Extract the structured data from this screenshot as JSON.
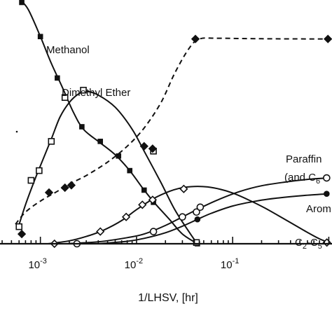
{
  "chart_data": {
    "type": "scatter",
    "xlabel": "1/LHSV, [hr]",
    "x_scale": "log",
    "xlim": [
      0.00038,
      1.08
    ],
    "ylim": [
      0,
      100
    ],
    "grid": false,
    "legend": "none",
    "x_ticks": [
      {
        "value": 0.001,
        "base": "10",
        "exp": "-3"
      },
      {
        "value": 0.01,
        "base": "10",
        "exp": "-2"
      },
      {
        "value": 0.1,
        "base": "10",
        "exp": "-1"
      }
    ],
    "series": [
      {
        "name": "Methanol",
        "marker": "square-filled",
        "points": [
          [
            0.00064,
            99
          ],
          [
            0.001,
            85
          ],
          [
            0.0015,
            68
          ],
          [
            0.0027,
            48
          ],
          [
            0.0042,
            42
          ],
          [
            0.0065,
            36
          ],
          [
            0.0085,
            30
          ],
          [
            0.012,
            22
          ],
          [
            0.015,
            17
          ],
          [
            0.043,
            0
          ]
        ],
        "curve": [
          [
            0.00062,
            100
          ],
          [
            0.00075,
            96
          ],
          [
            0.001,
            85
          ],
          [
            0.0013,
            74
          ],
          [
            0.0017,
            64
          ],
          [
            0.0022,
            54
          ],
          [
            0.0028,
            47
          ],
          [
            0.004,
            42
          ],
          [
            0.006,
            36.5
          ],
          [
            0.0085,
            30
          ],
          [
            0.012,
            22
          ],
          [
            0.016,
            16
          ],
          [
            0.022,
            10
          ],
          [
            0.03,
            4
          ],
          [
            0.043,
            0
          ]
        ]
      },
      {
        "name": "Dimethyl Ether",
        "marker": "square-open",
        "points": [
          [
            0.0006,
            7
          ],
          [
            0.0008,
            26
          ],
          [
            0.00097,
            30
          ],
          [
            0.0013,
            42
          ],
          [
            0.0018,
            60
          ],
          [
            0.0028,
            63
          ],
          [
            0.015,
            38
          ],
          [
            0.042,
            0.5
          ]
        ],
        "curve": [
          [
            0.00058,
            6
          ],
          [
            0.0007,
            16
          ],
          [
            0.00085,
            25
          ],
          [
            0.001,
            32
          ],
          [
            0.0013,
            43
          ],
          [
            0.0016,
            52
          ],
          [
            0.002,
            58
          ],
          [
            0.0025,
            61.5
          ],
          [
            0.003,
            62.5
          ],
          [
            0.004,
            61
          ],
          [
            0.006,
            56
          ],
          [
            0.009,
            47
          ],
          [
            0.012,
            38
          ],
          [
            0.018,
            25
          ],
          [
            0.025,
            14
          ],
          [
            0.035,
            5
          ],
          [
            0.042,
            0.5
          ]
        ]
      },
      {
        "name": "",
        "marker": "diamond-filled",
        "points": [
          [
            0.00064,
            4
          ],
          [
            0.00123,
            21
          ],
          [
            0.0018,
            23
          ],
          [
            0.0021,
            24
          ],
          [
            0.012,
            40
          ],
          [
            0.0147,
            39
          ],
          [
            0.041,
            84
          ],
          [
            0.98,
            84
          ]
        ],
        "curve": [
          [
            0.00055,
            8
          ],
          [
            0.0007,
            13
          ],
          [
            0.001,
            17.5
          ],
          [
            0.0015,
            21.5
          ],
          [
            0.002,
            24.5
          ],
          [
            0.003,
            28
          ],
          [
            0.005,
            33.5
          ],
          [
            0.008,
            40
          ],
          [
            0.012,
            47.5
          ],
          [
            0.018,
            58
          ],
          [
            0.025,
            70
          ],
          [
            0.035,
            80
          ],
          [
            0.045,
            84
          ],
          [
            0.07,
            84.3
          ],
          [
            0.2,
            84.1
          ],
          [
            1.0,
            84
          ]
        ]
      },
      {
        "name": "Paraffin (and C6",
        "marker": "circle-open",
        "points": [
          [
            0.0024,
            0
          ],
          [
            0.015,
            5
          ],
          [
            0.03,
            11
          ],
          [
            0.042,
            13
          ],
          [
            0.046,
            15
          ],
          [
            0.95,
            27
          ]
        ],
        "curve": [
          [
            0.0018,
            0
          ],
          [
            0.004,
            0.8
          ],
          [
            0.008,
            2.5
          ],
          [
            0.012,
            4
          ],
          [
            0.02,
            7.5
          ],
          [
            0.03,
            11
          ],
          [
            0.045,
            14.5
          ],
          [
            0.07,
            18
          ],
          [
            0.12,
            21.5
          ],
          [
            0.2,
            23.8
          ],
          [
            0.35,
            25.3
          ],
          [
            0.6,
            26.4
          ],
          [
            1.0,
            27
          ]
        ]
      },
      {
        "name": "Arom",
        "marker": "circle-filled",
        "points": [
          [
            0.043,
            10
          ],
          [
            0.95,
            20.5
          ]
        ],
        "curve": [
          [
            0.004,
            0
          ],
          [
            0.008,
            1
          ],
          [
            0.012,
            2.2
          ],
          [
            0.02,
            4.5
          ],
          [
            0.03,
            7.2
          ],
          [
            0.043,
            10
          ],
          [
            0.06,
            12.5
          ],
          [
            0.1,
            15.5
          ],
          [
            0.18,
            17.6
          ],
          [
            0.3,
            18.8
          ],
          [
            0.55,
            19.8
          ],
          [
            1.0,
            20.5
          ]
        ]
      },
      {
        "name": "C2-C5",
        "marker": "diamond-open",
        "points": [
          [
            0.0014,
            0
          ],
          [
            0.0042,
            5
          ],
          [
            0.0078,
            11
          ],
          [
            0.0115,
            16
          ],
          [
            0.0147,
            18
          ],
          [
            0.031,
            22.5
          ],
          [
            0.955,
            0.5
          ]
        ],
        "curve": [
          [
            0.0012,
            0
          ],
          [
            0.002,
            1.2
          ],
          [
            0.003,
            3
          ],
          [
            0.0045,
            5.5
          ],
          [
            0.007,
            9.5
          ],
          [
            0.01,
            14
          ],
          [
            0.015,
            18.5
          ],
          [
            0.022,
            21.5
          ],
          [
            0.03,
            23
          ],
          [
            0.04,
            23.5
          ],
          [
            0.055,
            23.3
          ],
          [
            0.075,
            22.3
          ],
          [
            0.1,
            20.8
          ],
          [
            0.15,
            17.8
          ],
          [
            0.22,
            14.5
          ],
          [
            0.35,
            10
          ],
          [
            0.55,
            5.5
          ],
          [
            0.8,
            2
          ],
          [
            1.0,
            0.6
          ]
        ]
      }
    ],
    "annotations": {
      "methanol": "Methanol",
      "dme": "Dimethyl Ether",
      "paraffin_l1": "Paraffin",
      "paraffin_l2_pre": "(and C",
      "paraffin_l2_sub": "6",
      "arom": "Arom",
      "c2c5_a": "C",
      "c2c5_a_sub": "2",
      "c2c5_mid": "-C",
      "c2c5_b_sub": "5"
    }
  }
}
